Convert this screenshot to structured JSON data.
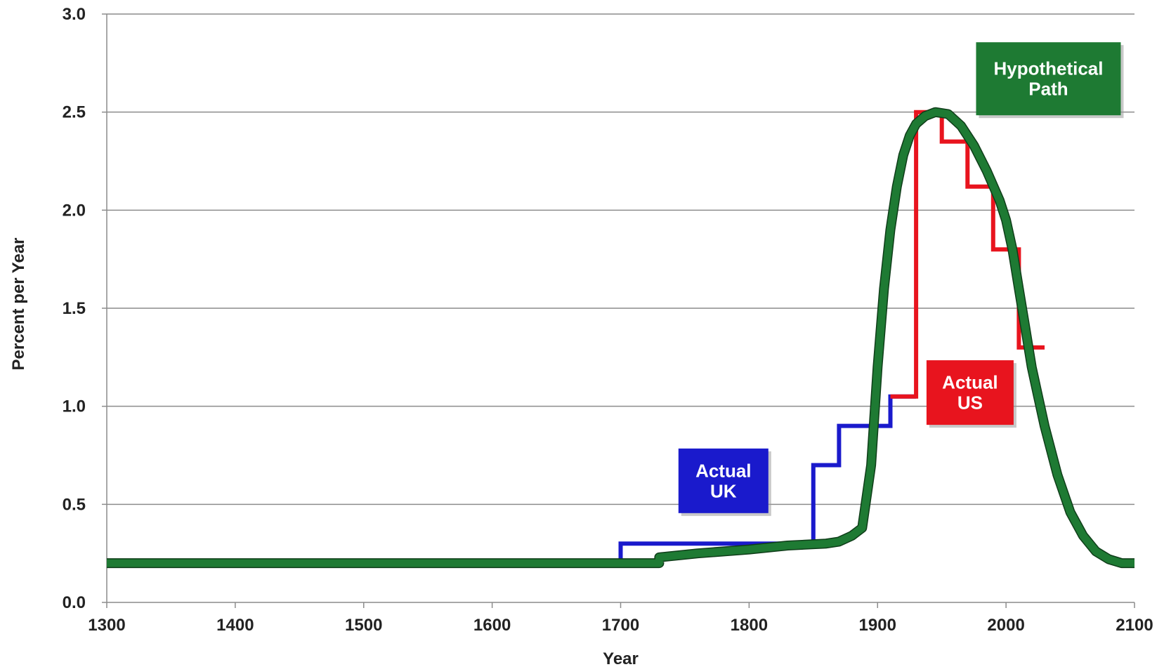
{
  "chart_data": {
    "type": "line",
    "title": "",
    "xlabel": "Year",
    "ylabel": "Percent per Year",
    "xlim": [
      1300,
      2100
    ],
    "ylim": [
      0,
      3.0
    ],
    "x_ticks": [
      "1300",
      "1400",
      "1500",
      "1600",
      "1700",
      "1800",
      "1900",
      "2000",
      "2100"
    ],
    "y_ticks": [
      "0.0",
      "0.5",
      "1.0",
      "1.5",
      "2.0",
      "2.5",
      "3.0"
    ],
    "grid": "horizontal",
    "legend": "none",
    "series": [
      {
        "name": "Actual UK",
        "color": "#1a1acc",
        "step": true,
        "points": [
          [
            1300,
            0.2
          ],
          [
            1700,
            0.2
          ],
          [
            1700,
            0.3
          ],
          [
            1850,
            0.3
          ],
          [
            1850,
            0.7
          ],
          [
            1870,
            0.7
          ],
          [
            1870,
            0.9
          ],
          [
            1910,
            0.9
          ],
          [
            1910,
            1.05
          ],
          [
            1930,
            1.05
          ]
        ]
      },
      {
        "name": "Actual US",
        "color": "#e8141e",
        "step": true,
        "points": [
          [
            1910,
            1.05
          ],
          [
            1930,
            1.05
          ],
          [
            1930,
            2.5
          ],
          [
            1950,
            2.5
          ],
          [
            1950,
            2.35
          ],
          [
            1970,
            2.35
          ],
          [
            1970,
            2.12
          ],
          [
            1990,
            2.12
          ],
          [
            1990,
            1.8
          ],
          [
            2010,
            1.8
          ],
          [
            2010,
            1.3
          ],
          [
            2030,
            1.3
          ]
        ]
      },
      {
        "name": "Hypothetical Path",
        "color": "#1e7a33",
        "step": false,
        "points": [
          [
            1300,
            0.2
          ],
          [
            1730,
            0.2
          ],
          [
            1730,
            0.23
          ],
          [
            1760,
            0.25
          ],
          [
            1800,
            0.27
          ],
          [
            1830,
            0.29
          ],
          [
            1860,
            0.3
          ],
          [
            1870,
            0.31
          ],
          [
            1880,
            0.34
          ],
          [
            1888,
            0.38
          ],
          [
            1895,
            0.7
          ],
          [
            1900,
            1.2
          ],
          [
            1905,
            1.6
          ],
          [
            1910,
            1.9
          ],
          [
            1915,
            2.12
          ],
          [
            1920,
            2.28
          ],
          [
            1925,
            2.38
          ],
          [
            1930,
            2.44
          ],
          [
            1937,
            2.48
          ],
          [
            1945,
            2.5
          ],
          [
            1955,
            2.49
          ],
          [
            1965,
            2.43
          ],
          [
            1975,
            2.33
          ],
          [
            1985,
            2.2
          ],
          [
            1995,
            2.05
          ],
          [
            2000,
            1.95
          ],
          [
            2005,
            1.8
          ],
          [
            2010,
            1.6
          ],
          [
            2015,
            1.4
          ],
          [
            2020,
            1.2
          ],
          [
            2025,
            1.05
          ],
          [
            2030,
            0.9
          ],
          [
            2040,
            0.65
          ],
          [
            2050,
            0.46
          ],
          [
            2060,
            0.34
          ],
          [
            2070,
            0.26
          ],
          [
            2080,
            0.22
          ],
          [
            2090,
            0.2
          ],
          [
            2100,
            0.2
          ]
        ]
      }
    ],
    "annotations": [
      {
        "name": "uk",
        "lines": [
          "Actual",
          "UK"
        ],
        "color": "#1a1acc",
        "anchor_x": 1780,
        "anchor_y": 0.62
      },
      {
        "name": "us",
        "lines": [
          "Actual",
          "US"
        ],
        "color": "#e8141e",
        "anchor_x": 1972,
        "anchor_y": 1.07
      },
      {
        "name": "hypothetical",
        "lines": [
          "Hypothetical",
          "Path"
        ],
        "color": "#1e7a33",
        "anchor_x": 2033,
        "anchor_y": 2.67
      }
    ]
  }
}
